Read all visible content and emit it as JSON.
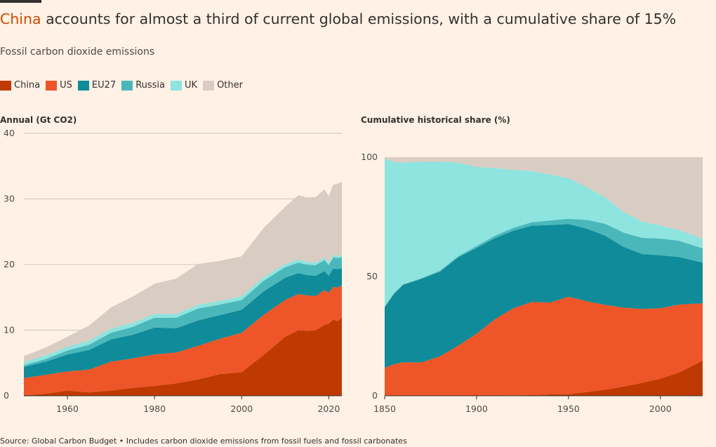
{
  "title": {
    "highlight": "China",
    "rest": " accounts for almost a third of current global emissions, with a cumulative share of 15%"
  },
  "subtitle": "Fossil carbon dioxide emissions",
  "legend": [
    {
      "name": "China",
      "color": "#BF3A00"
    },
    {
      "name": "US",
      "color": "#EE5528"
    },
    {
      "name": "EU27",
      "color": "#0F8B99"
    },
    {
      "name": "Russia",
      "color": "#4AB8BB"
    },
    {
      "name": "UK",
      "color": "#8EE4DF"
    },
    {
      "name": "Other",
      "color": "#D9CCC2"
    }
  ],
  "footer": "Source: Global Carbon Budget • Includes carbon dioxide emissions from fossil fuels and fossil carbonates",
  "colors": {
    "China": "#BF3A00",
    "US": "#EE5528",
    "EU27": "#0F8B99",
    "Russia": "#4AB8BB",
    "UK": "#8EE4DF",
    "Other": "#D9CCC2",
    "grid": "#CEC6B9",
    "axis": "#33302E"
  },
  "chart_data": [
    {
      "type": "area",
      "stacked": true,
      "title": "Annual (Gt CO2)",
      "ylabel": "Annual (Gt CO2)",
      "xlim": [
        1950,
        2023
      ],
      "ylim": [
        0,
        40
      ],
      "yticks": [
        0,
        10,
        20,
        30,
        40
      ],
      "xticks": [
        1960,
        1980,
        2000,
        2020
      ],
      "grid": true,
      "x": [
        1950,
        1955,
        1960,
        1965,
        1970,
        1975,
        1980,
        1985,
        1990,
        1995,
        2000,
        2005,
        2010,
        2013,
        2015,
        2017,
        2019,
        2020,
        2021,
        2022,
        2023
      ],
      "series": [
        {
          "name": "China",
          "values": [
            0.1,
            0.3,
            0.8,
            0.5,
            0.8,
            1.2,
            1.5,
            1.9,
            2.5,
            3.3,
            3.6,
            6.2,
            9.0,
            10.0,
            9.9,
            10.0,
            10.8,
            11.0,
            11.6,
            11.4,
            11.9
          ]
        },
        {
          "name": "US",
          "values": [
            2.6,
            2.9,
            2.9,
            3.5,
            4.4,
            4.5,
            4.8,
            4.7,
            5.1,
            5.4,
            6.0,
            6.1,
            5.6,
            5.5,
            5.4,
            5.2,
            5.3,
            4.7,
            5.0,
            5.1,
            4.9
          ]
        },
        {
          "name": "EU27",
          "values": [
            1.7,
            2.0,
            2.6,
            3.0,
            3.4,
            3.6,
            4.1,
            3.7,
            3.9,
            3.6,
            3.5,
            3.6,
            3.4,
            3.2,
            3.1,
            3.1,
            2.9,
            2.6,
            2.8,
            2.8,
            2.6
          ]
        },
        {
          "name": "Russia",
          "values": [
            0.25,
            0.4,
            0.6,
            0.8,
            1.0,
            1.2,
            1.5,
            1.6,
            1.8,
            1.6,
            1.5,
            1.6,
            1.6,
            1.6,
            1.6,
            1.6,
            1.7,
            1.6,
            1.7,
            1.7,
            1.7
          ]
        },
        {
          "name": "UK",
          "values": [
            0.5,
            0.55,
            0.58,
            0.62,
            0.66,
            0.62,
            0.58,
            0.56,
            0.6,
            0.56,
            0.56,
            0.55,
            0.5,
            0.47,
            0.42,
            0.38,
            0.36,
            0.32,
            0.34,
            0.33,
            0.31
          ]
        },
        {
          "name": "Other",
          "values": [
            0.9,
            1.2,
            1.5,
            2.3,
            3.2,
            4.0,
            4.6,
            5.4,
            6.2,
            6.1,
            6.1,
            7.5,
            8.7,
            9.8,
            9.8,
            10.0,
            10.4,
            10.2,
            10.7,
            11.0,
            11.2
          ]
        }
      ]
    },
    {
      "type": "area",
      "stacked": true,
      "title": "Cumulative historical share (%)",
      "ylabel": "Cumulative historical share (%)",
      "xlim": [
        1850,
        2023
      ],
      "ylim": [
        0,
        100
      ],
      "yticks": [
        0,
        50,
        100
      ],
      "xticks": [
        1850,
        1900,
        1950,
        2000
      ],
      "grid": false,
      "x": [
        1850,
        1855,
        1860,
        1870,
        1880,
        1890,
        1900,
        1910,
        1920,
        1930,
        1940,
        1950,
        1960,
        1970,
        1980,
        1990,
        2000,
        2010,
        2023
      ],
      "series": [
        {
          "name": "China",
          "values": [
            0,
            0,
            0,
            0,
            0,
            0,
            0,
            0.1,
            0.2,
            0.3,
            0.6,
            0.7,
            1.6,
            2.6,
            3.9,
            5.4,
            7.2,
            9.7,
            14.8
          ]
        },
        {
          "name": "US",
          "values": [
            11.7,
            13.2,
            14.0,
            14.0,
            16.5,
            21.0,
            26.0,
            32.0,
            36.5,
            39.0,
            38.5,
            40.8,
            38.0,
            35.5,
            33.0,
            31.0,
            29.5,
            28.5,
            24.0
          ]
        },
        {
          "name": "EU27",
          "values": [
            25.5,
            29.5,
            32.5,
            35.0,
            35.5,
            37.0,
            36.0,
            34.0,
            32.5,
            32.0,
            32.5,
            30.5,
            30.5,
            29.0,
            25.5,
            23.0,
            22.2,
            20.0,
            17.0
          ]
        },
        {
          "name": "Russia",
          "values": [
            0.1,
            0.2,
            0.2,
            0.3,
            0.4,
            0.5,
            0.8,
            1.0,
            1.2,
            1.4,
            1.9,
            2.2,
            3.6,
            5.0,
            6.0,
            6.8,
            7.0,
            6.8,
            6.0
          ]
        },
        {
          "name": "UK",
          "values": [
            62.2,
            55.0,
            51.0,
            48.8,
            45.7,
            39.2,
            33.1,
            28.3,
            24.3,
            21.5,
            19.2,
            17.0,
            13.8,
            11.1,
            8.6,
            6.8,
            5.5,
            4.5,
            4.0
          ]
        },
        {
          "name": "Other",
          "values": [
            0.5,
            2.1,
            2.3,
            1.9,
            1.9,
            2.3,
            4.1,
            4.6,
            5.3,
            5.8,
            7.3,
            8.8,
            12.5,
            16.8,
            23.0,
            27.0,
            28.6,
            30.5,
            34.2
          ]
        }
      ]
    }
  ]
}
